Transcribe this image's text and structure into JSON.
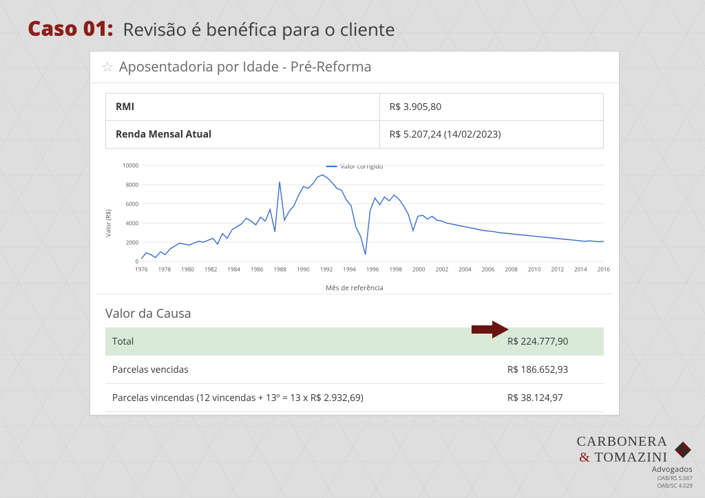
{
  "header": {
    "caso_label": "Caso 01:",
    "title": "Revisão é benéfica para o cliente",
    "caso_color": "#8a1e18",
    "title_color": "#3a3a3a"
  },
  "panel": {
    "star_glyph": "☆",
    "title": "Aposentadoria por Idade - Pré-Reforma",
    "info_rows": [
      {
        "label": "RMI",
        "value": "R$ 3.905,80"
      },
      {
        "label": "Renda Mensal Atual",
        "value": "R$ 5.207,24 (14/02/2023)"
      }
    ]
  },
  "chart": {
    "type": "line",
    "legend_label": "Valor corrigido",
    "y_label": "Valor (R$)",
    "x_label": "Mês de referência",
    "ylim": [
      0,
      10000
    ],
    "ytick_step": 2000,
    "x_categories": [
      "1976",
      "1978",
      "1980",
      "1982",
      "1984",
      "1986",
      "1988",
      "1990",
      "1992",
      "1994",
      "1996",
      "1998",
      "2000",
      "2002",
      "2004",
      "2006",
      "2008",
      "2010",
      "2012",
      "2014",
      "2016"
    ],
    "series_color": "#3a6fcf",
    "grid_color": "#e9e9e9",
    "background_color": "#ffffff",
    "title_fontsize": 9,
    "tick_fontsize": 8,
    "line_width": 1.4,
    "series": [
      280,
      900,
      700,
      400,
      1000,
      700,
      1300,
      1600,
      1900,
      1800,
      1700,
      1900,
      2100,
      2000,
      2200,
      2400,
      1800,
      2900,
      2400,
      3300,
      3600,
      3900,
      4500,
      4200,
      3800,
      4600,
      4200,
      5400,
      3100,
      8300,
      4300,
      5200,
      5800,
      6900,
      7800,
      7600,
      8100,
      8800,
      9000,
      8700,
      8200,
      7600,
      7400,
      6400,
      5800,
      3600,
      2600,
      700,
      5300,
      6600,
      5900,
      6700,
      6300,
      6900,
      6500,
      5800,
      4900,
      3200,
      4700,
      4800,
      4400,
      4700,
      4300,
      4200,
      4000,
      3900,
      3800,
      3700,
      3600,
      3500,
      3400,
      3300,
      3200,
      3150,
      3100,
      3000,
      2950,
      2900,
      2850,
      2800,
      2750,
      2700,
      2650,
      2600,
      2550,
      2500,
      2450,
      2400,
      2350,
      2300,
      2250,
      2200,
      2150,
      2100,
      2150,
      2100,
      2050,
      2100
    ]
  },
  "valor_causa": {
    "heading": "Valor da Causa",
    "highlight_bg": "#d9ead9",
    "arrow_color": "#6a1410",
    "rows": [
      {
        "label": "Total",
        "value": "R$ 224.777,90",
        "highlight": true
      },
      {
        "label": "Parcelas vencidas",
        "value": "R$ 186.652,93",
        "highlight": false
      },
      {
        "label": "Parcelas vincendas (12 vincendas + 13º = 13 x R$ 2.932,69)",
        "value": "R$ 38.124,97",
        "highlight": false
      }
    ]
  },
  "brand": {
    "line1a": "CARBONERA",
    "line1_amp": "&",
    "line1b": " TOMAZINI",
    "sub": "Advogados",
    "oab1": "OAB/RS 5.067",
    "oab2": "OAB/SC 4.029",
    "mark_colors": [
      "#6a1410",
      "#2d2d2d"
    ]
  }
}
